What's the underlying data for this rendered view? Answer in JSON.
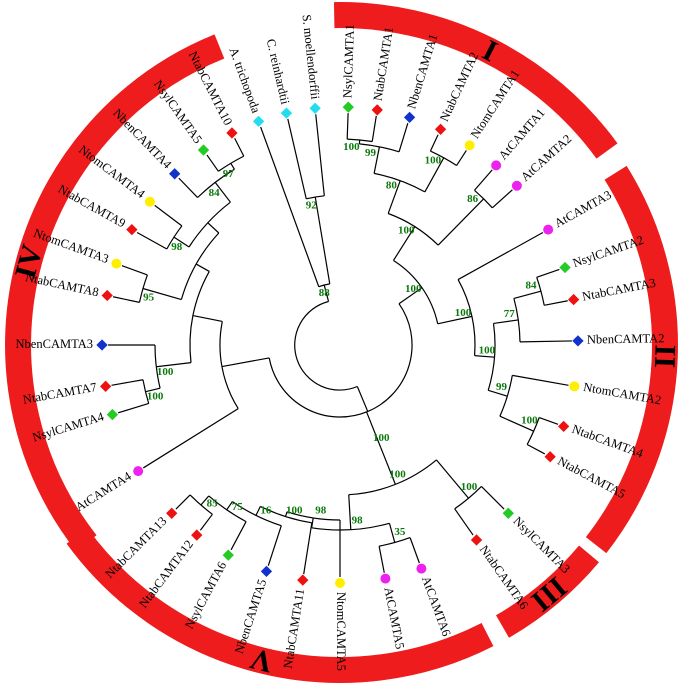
{
  "tree": {
    "leaves": [
      {
        "id": "NsylCAMTA1",
        "label": "NsylCAMTA1",
        "marker": "diamond",
        "color": "#22cc22"
      },
      {
        "id": "NtabCAMTA1",
        "label": "NtabCAMTA1",
        "marker": "diamond",
        "color": "#ee1111"
      },
      {
        "id": "NbenCAMTA1",
        "label": "NbenCAMTA1",
        "marker": "diamond",
        "color": "#1133cc"
      },
      {
        "id": "NtabCAMTA2",
        "label": "NtabCAMTA2",
        "marker": "diamond",
        "color": "#ee1111"
      },
      {
        "id": "NtomCAMTA1",
        "label": "NtomCAMTA1",
        "marker": "circle",
        "color": "#ffee00"
      },
      {
        "id": "AtCAMTA1",
        "label": "AtCAMTA1",
        "marker": "circle",
        "color": "#ee22ee"
      },
      {
        "id": "AtCAMTA2",
        "label": "AtCAMTA2",
        "marker": "circle",
        "color": "#ee22ee"
      },
      {
        "id": "AtCAMTA3",
        "label": "AtCAMTA3",
        "marker": "circle",
        "color": "#ee22ee"
      },
      {
        "id": "NsylCAMTA2",
        "label": "NsylCAMTA2",
        "marker": "diamond",
        "color": "#22cc22"
      },
      {
        "id": "NtabCAMTA3",
        "label": "NtabCAMTA3",
        "marker": "diamond",
        "color": "#ee1111"
      },
      {
        "id": "NbenCAMTA2",
        "label": "NbenCAMTA2",
        "marker": "diamond",
        "color": "#1133cc"
      },
      {
        "id": "NtomCAMTA2",
        "label": "NtomCAMTA2",
        "marker": "circle",
        "color": "#ffee00"
      },
      {
        "id": "NtabCAMTA4",
        "label": "NtabCAMTA4",
        "marker": "diamond",
        "color": "#ee1111"
      },
      {
        "id": "NtabCAMTA5",
        "label": "NtabCAMTA5",
        "marker": "diamond",
        "color": "#ee1111"
      },
      {
        "id": "NsylCAMTA3",
        "label": "NsylCAMTA3",
        "marker": "diamond",
        "color": "#22cc22"
      },
      {
        "id": "NtabCAMTA6",
        "label": "NtabCAMTA6",
        "marker": "diamond",
        "color": "#ee1111"
      },
      {
        "id": "AtCAMTA6",
        "label": "AtCAMTA6",
        "marker": "circle",
        "color": "#ee22ee"
      },
      {
        "id": "AtCAMTA5",
        "label": "AtCAMTA5",
        "marker": "circle",
        "color": "#ee22ee"
      },
      {
        "id": "NtomCAMTA5",
        "label": "NtomCAMTA5",
        "marker": "circle",
        "color": "#ffee00"
      },
      {
        "id": "NtabCAMTA11",
        "label": "NtabCAMTA11",
        "marker": "diamond",
        "color": "#ee1111"
      },
      {
        "id": "NbenCAMTA5",
        "label": "NbenCAMTA5",
        "marker": "diamond",
        "color": "#1133cc"
      },
      {
        "id": "NsylCAMTA6",
        "label": "NsylCAMTA6",
        "marker": "diamond",
        "color": "#22cc22"
      },
      {
        "id": "NtabCAMTA12",
        "label": "NtabCAMTA12",
        "marker": "diamond",
        "color": "#ee1111"
      },
      {
        "id": "NtabCAMTA13",
        "label": "NtabCAMTA13",
        "marker": "diamond",
        "color": "#ee1111"
      },
      {
        "id": "AtCAMTA4",
        "label": "AtCAMTA4",
        "marker": "circle",
        "color": "#ee22ee"
      },
      {
        "id": "NsylCAMTA4",
        "label": "NsylCAMTA4",
        "marker": "diamond",
        "color": "#22cc22"
      },
      {
        "id": "NtabCAMTA7",
        "label": "NtabCAMTA7",
        "marker": "diamond",
        "color": "#ee1111"
      },
      {
        "id": "NbenCAMTA3",
        "label": "NbenCAMTA3",
        "marker": "diamond",
        "color": "#1133cc"
      },
      {
        "id": "NtabCAMTA8",
        "label": "NtabCAMTA8",
        "marker": "diamond",
        "color": "#ee1111"
      },
      {
        "id": "NtomCAMTA3",
        "label": "NtomCAMTA3",
        "marker": "circle",
        "color": "#ffee00"
      },
      {
        "id": "NtabCAMTA9",
        "label": "NtabCAMTA9",
        "marker": "diamond",
        "color": "#ee1111"
      },
      {
        "id": "NtomCAMTA4",
        "label": "NtomCAMTA4",
        "marker": "circle",
        "color": "#ffee00"
      },
      {
        "id": "NbenCAMTA4",
        "label": "NbenCAMTA4",
        "marker": "diamond",
        "color": "#1133cc"
      },
      {
        "id": "NsylCAMTA5",
        "label": "NsylCAMTA5",
        "marker": "diamond",
        "color": "#22cc22"
      },
      {
        "id": "NtabCAMTA10",
        "label": "NtabCAMTA10",
        "marker": "diamond",
        "color": "#ee1111"
      },
      {
        "id": "A_trichopoda",
        "label": "A. trichopoda",
        "marker": "diamond",
        "color": "#22ddee"
      },
      {
        "id": "C_reinhardtii",
        "label": "C. reinhardtii",
        "marker": "diamond",
        "color": "#22ddee"
      },
      {
        "id": "S_moellendorffii",
        "label": "S. moellendorffii",
        "marker": "diamond",
        "color": "#22ddee"
      }
    ],
    "bootstrap_values": [
      "92",
      "88",
      "100",
      "99",
      "100",
      "80",
      "86",
      "100",
      "84",
      "77",
      "100",
      "99",
      "100",
      "100",
      "100",
      "100",
      "35",
      "85",
      "75",
      "16",
      "100",
      "98",
      "98",
      "100",
      "100",
      "100",
      "100",
      "95",
      "98",
      "97",
      "84"
    ],
    "clades": [
      {
        "name": "I",
        "color": "#ee1c1c"
      },
      {
        "name": "II",
        "color": "#ee1c1c"
      },
      {
        "name": "III",
        "color": "#ee1c1c"
      },
      {
        "name": "IV",
        "color": "#ee1c1c"
      },
      {
        "name": "V",
        "color": "#ee1c1c"
      }
    ],
    "branch_color": "#000000",
    "bootstrap_color": "#0a7a0a"
  }
}
